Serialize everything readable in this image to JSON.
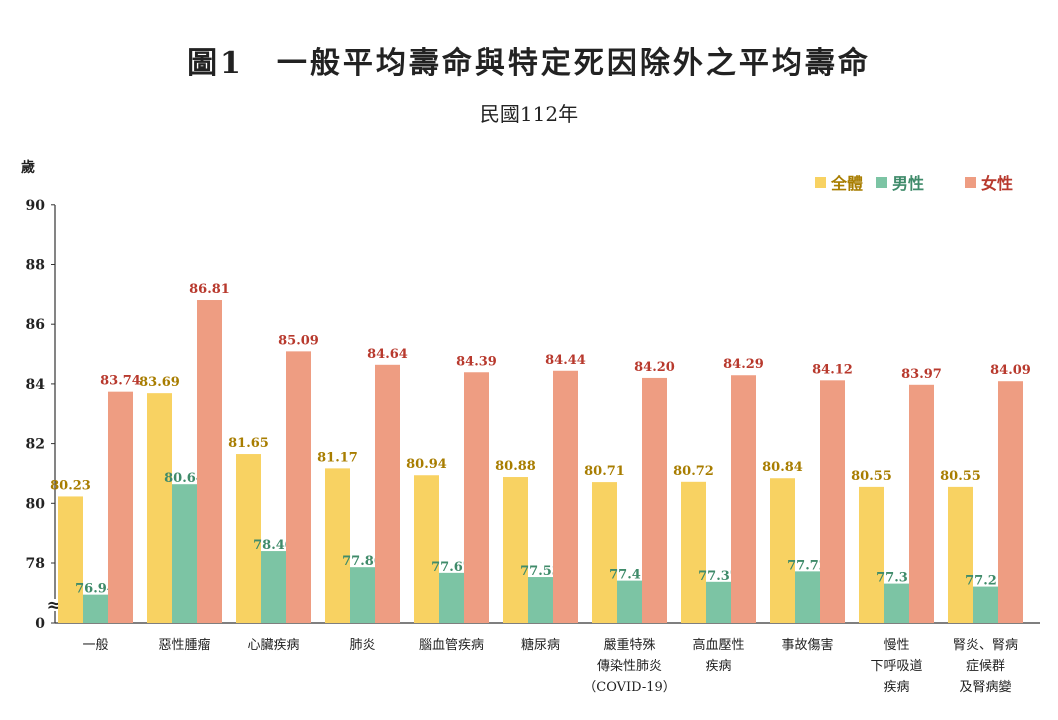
{
  "title": "圖1　一般平均壽命與特定死因除外之平均壽命",
  "subtitle": "民國112年",
  "colors": {
    "total": "#f8d262",
    "male": "#7cc4a4",
    "female": "#ee9d82",
    "total_text": "#a87d00",
    "male_text": "#3f8b6a",
    "female_text": "#b8392d"
  },
  "chart_data": {
    "type": "bar",
    "ylabel": "歲",
    "ylim": [
      76,
      90
    ],
    "yticks": [
      "90",
      "88",
      "86",
      "84",
      "82",
      "80",
      "78",
      "0"
    ],
    "axis_break": "≈",
    "legend_position": "top-right",
    "grid": false,
    "categories": [
      [
        "一般"
      ],
      [
        "惡性腫瘤"
      ],
      [
        "心臟疾病"
      ],
      [
        "肺炎"
      ],
      [
        "腦血管疾病"
      ],
      [
        "糖尿病"
      ],
      [
        "嚴重特殊",
        "傳染性肺炎",
        "（COVID-19）"
      ],
      [
        "高血壓性",
        "疾病"
      ],
      [
        "事故傷害"
      ],
      [
        "慢性",
        "下呼吸道",
        "疾病"
      ],
      [
        "腎炎、腎病",
        "症候群",
        "及腎病變"
      ]
    ],
    "series": [
      {
        "name": "全體",
        "values": [
          80.23,
          83.69,
          81.65,
          81.17,
          80.94,
          80.88,
          80.71,
          80.72,
          80.84,
          80.55,
          80.55
        ],
        "labels": [
          "80.23",
          "83.69",
          "81.65",
          "81.17",
          "80.94",
          "80.88",
          "80.71",
          "80.72",
          "80.84",
          "80.55",
          "80.55"
        ]
      },
      {
        "name": "男性",
        "values": [
          76.94,
          80.64,
          78.4,
          77.86,
          77.67,
          77.53,
          77.41,
          77.37,
          77.72,
          77.31,
          77.21
        ],
        "labels": [
          "76.94",
          "80.64",
          "78.40",
          "77.86",
          "77.67",
          "77.53",
          "77.41",
          "77.37",
          "77.72",
          "77.31",
          "77.21"
        ]
      },
      {
        "name": "女性",
        "values": [
          83.74,
          86.81,
          85.09,
          84.64,
          84.39,
          84.44,
          84.2,
          84.29,
          84.12,
          83.97,
          84.09
        ],
        "labels": [
          "83.74",
          "86.81",
          "85.09",
          "84.64",
          "84.39",
          "84.44",
          "84.20",
          "84.29",
          "84.12",
          "83.97",
          "84.09"
        ]
      }
    ]
  }
}
